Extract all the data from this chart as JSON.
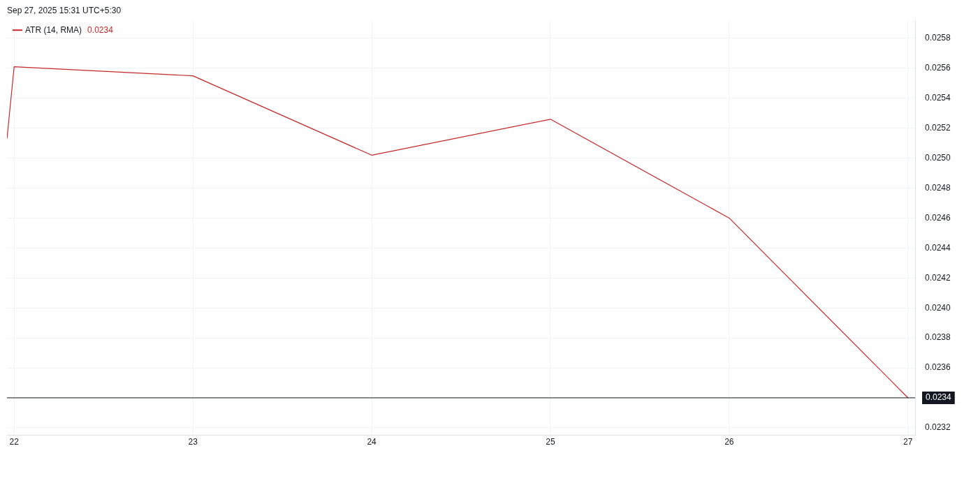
{
  "chart_data": {
    "type": "line",
    "x": [
      21.96,
      22,
      23,
      24,
      25,
      26,
      27
    ],
    "series": [
      {
        "name": "ATR (14, RMA)",
        "color": "#c62828",
        "values": [
          0.02513,
          0.02561,
          0.02555,
          0.02502,
          0.02526,
          0.0246,
          0.0234
        ]
      }
    ],
    "xlim": [
      21.96,
      27.04
    ],
    "xticks": [
      22,
      23,
      24,
      25,
      26,
      27
    ],
    "ylim": [
      0.02315,
      0.02592
    ],
    "yticks": [
      0.0232,
      {
        "value": 0.0234,
        "label": null
      },
      0.0236,
      0.0238,
      {
        "value": 0.024,
        "label": "0.0240"
      },
      0.0242,
      0.0244,
      0.0246,
      0.0248,
      {
        "value": 0.025,
        "label": "0.0250"
      },
      0.0252,
      0.0254,
      0.0256,
      0.0258
    ],
    "ref_lines": [
      {
        "axis": "y",
        "value": 0.0234,
        "label": "0.0234",
        "color": "#131722"
      }
    ],
    "annotations": [
      "Sep 27, 2025 15:31 UTC+5:30",
      "0.0234"
    ],
    "grid": true,
    "legend": "top left",
    "marker": "none",
    "line_style": "solid"
  }
}
